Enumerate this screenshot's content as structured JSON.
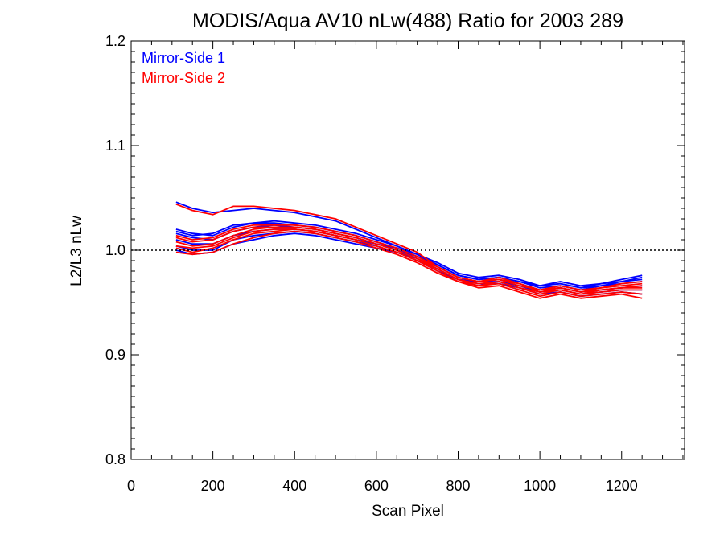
{
  "chart_data": {
    "type": "line",
    "title": "MODIS/Aqua AV10 nLw(488) Ratio for 2003 289",
    "xlabel": "Scan Pixel",
    "ylabel": "L2/L3 nLw",
    "xlim": [
      0,
      1354
    ],
    "ylim": [
      0.8,
      1.2
    ],
    "xticks": [
      0,
      200,
      400,
      600,
      800,
      1000,
      1200
    ],
    "xtick_labels": [
      "0",
      "200",
      "400",
      "600",
      "800",
      "1000",
      "1200"
    ],
    "yticks": [
      0.8,
      0.9,
      1.0,
      1.1,
      1.2
    ],
    "ytick_labels": [
      "0.8",
      "0.9",
      "1.0",
      "1.1",
      "1.2"
    ],
    "reference_line": {
      "y": 1.0,
      "style": "dotted"
    },
    "legend_position": "top-left",
    "legend": [
      {
        "label": "Mirror-Side 1",
        "color": "#0000ff"
      },
      {
        "label": "Mirror-Side 2",
        "color": "#ff0000"
      }
    ],
    "x": [
      110,
      150,
      200,
      250,
      300,
      350,
      400,
      450,
      500,
      550,
      600,
      650,
      700,
      750,
      800,
      850,
      900,
      950,
      1000,
      1050,
      1100,
      1150,
      1200,
      1250
    ],
    "series": [
      {
        "group": 1,
        "color": "#0000ff",
        "values": [
          1.046,
          1.04,
          1.036,
          1.038,
          1.04,
          1.038,
          1.036,
          1.032,
          1.028,
          1.02,
          1.012,
          1.004,
          0.996,
          0.986,
          0.976,
          0.972,
          0.974,
          0.97,
          0.966,
          0.968,
          0.964,
          0.966,
          0.97,
          0.974
        ]
      },
      {
        "group": 1,
        "color": "#0000ff",
        "values": [
          1.02,
          1.016,
          1.014,
          1.022,
          1.026,
          1.028,
          1.026,
          1.024,
          1.02,
          1.016,
          1.01,
          1.004,
          0.996,
          0.988,
          0.978,
          0.974,
          0.976,
          0.972,
          0.966,
          0.97,
          0.966,
          0.968,
          0.972,
          0.976
        ]
      },
      {
        "group": 1,
        "color": "#0000ff",
        "values": [
          1.016,
          1.012,
          1.01,
          1.018,
          1.022,
          1.024,
          1.022,
          1.02,
          1.016,
          1.012,
          1.006,
          1.002,
          0.994,
          0.986,
          0.976,
          0.972,
          0.974,
          0.97,
          0.964,
          0.966,
          0.962,
          0.966,
          0.968,
          0.97
        ]
      },
      {
        "group": 1,
        "color": "#0000ff",
        "values": [
          1.01,
          1.006,
          1.006,
          1.014,
          1.018,
          1.02,
          1.02,
          1.018,
          1.014,
          1.01,
          1.006,
          1.0,
          0.994,
          0.984,
          0.974,
          0.97,
          0.972,
          0.968,
          0.962,
          0.964,
          0.96,
          0.962,
          0.964,
          0.966
        ]
      },
      {
        "group": 1,
        "color": "#0000ff",
        "values": [
          1.004,
          1.0,
          1.0,
          1.01,
          1.014,
          1.016,
          1.018,
          1.016,
          1.012,
          1.008,
          1.004,
          0.998,
          0.992,
          0.982,
          0.972,
          0.97,
          0.97,
          0.966,
          0.96,
          0.962,
          0.958,
          0.96,
          0.962,
          0.962
        ]
      },
      {
        "group": 1,
        "color": "#0000ff",
        "values": [
          1.0,
          0.996,
          0.998,
          1.006,
          1.01,
          1.014,
          1.016,
          1.014,
          1.01,
          1.006,
          1.002,
          0.998,
          0.99,
          0.98,
          0.972,
          0.968,
          0.968,
          0.964,
          0.958,
          0.96,
          0.956,
          0.958,
          0.96,
          0.958
        ]
      },
      {
        "group": 1,
        "color": "#0000ff",
        "values": [
          1.018,
          1.014,
          1.016,
          1.024,
          1.026,
          1.026,
          1.024,
          1.022,
          1.018,
          1.014,
          1.008,
          1.002,
          0.996,
          0.986,
          0.976,
          0.972,
          0.974,
          0.97,
          0.966,
          0.968,
          0.964,
          0.968,
          0.97,
          0.972
        ]
      },
      {
        "group": 2,
        "color": "#ff0000",
        "values": [
          1.044,
          1.038,
          1.034,
          1.042,
          1.042,
          1.04,
          1.038,
          1.034,
          1.03,
          1.022,
          1.014,
          1.006,
          0.998,
          0.984,
          0.974,
          0.97,
          0.974,
          0.968,
          0.962,
          0.966,
          0.962,
          0.964,
          0.968,
          0.97
        ]
      },
      {
        "group": 2,
        "color": "#ff0000",
        "values": [
          1.014,
          1.01,
          1.012,
          1.02,
          1.024,
          1.024,
          1.024,
          1.022,
          1.018,
          1.014,
          1.008,
          1.002,
          0.994,
          0.984,
          0.974,
          0.97,
          0.972,
          0.968,
          0.96,
          0.964,
          0.96,
          0.962,
          0.964,
          0.966
        ]
      },
      {
        "group": 2,
        "color": "#ff0000",
        "values": [
          1.008,
          1.004,
          1.006,
          1.014,
          1.02,
          1.022,
          1.022,
          1.02,
          1.016,
          1.012,
          1.006,
          1.0,
          0.992,
          0.982,
          0.972,
          0.968,
          0.97,
          0.964,
          0.958,
          0.962,
          0.958,
          0.96,
          0.962,
          0.962
        ]
      },
      {
        "group": 2,
        "color": "#ff0000",
        "values": [
          1.002,
          0.998,
          1.002,
          1.01,
          1.016,
          1.018,
          1.02,
          1.018,
          1.014,
          1.01,
          1.004,
          0.998,
          0.99,
          0.98,
          0.97,
          0.966,
          0.968,
          0.962,
          0.956,
          0.96,
          0.956,
          0.958,
          0.96,
          0.958
        ]
      },
      {
        "group": 2,
        "color": "#ff0000",
        "values": [
          0.998,
          0.996,
          0.998,
          1.006,
          1.012,
          1.016,
          1.018,
          1.016,
          1.012,
          1.008,
          1.002,
          0.996,
          0.988,
          0.978,
          0.97,
          0.964,
          0.966,
          0.96,
          0.954,
          0.958,
          0.954,
          0.956,
          0.958,
          0.954
        ]
      },
      {
        "group": 2,
        "color": "#ff0000",
        "values": [
          1.012,
          1.008,
          1.01,
          1.018,
          1.022,
          1.022,
          1.022,
          1.02,
          1.016,
          1.012,
          1.006,
          1.0,
          0.992,
          0.984,
          0.974,
          0.97,
          0.972,
          0.966,
          0.962,
          0.964,
          0.96,
          0.964,
          0.966,
          0.968
        ]
      },
      {
        "group": 2,
        "color": "#ff0000",
        "values": [
          1.004,
          1.002,
          1.004,
          1.012,
          1.018,
          1.02,
          1.02,
          1.018,
          1.014,
          1.01,
          1.004,
          0.998,
          0.99,
          0.982,
          0.972,
          0.966,
          0.97,
          0.964,
          0.96,
          0.962,
          0.958,
          0.962,
          0.964,
          0.964
        ]
      }
    ]
  }
}
